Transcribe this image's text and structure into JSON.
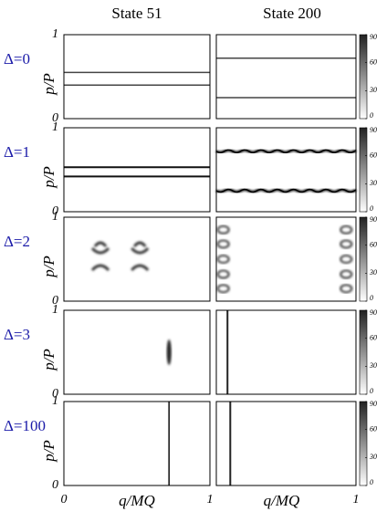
{
  "chart_data": {
    "type": "heatmap-grid",
    "columns": [
      "State 51",
      "State 200"
    ],
    "rows": [
      "Δ=0",
      "Δ=1",
      "Δ=2",
      "Δ=3",
      "Δ=100"
    ],
    "xlabel": "q/MQ",
    "ylabel": "p/P",
    "xlim": [
      0,
      1
    ],
    "ylim": [
      0,
      1
    ],
    "xticks": [
      0,
      1
    ],
    "yticks": [
      0,
      1
    ],
    "colorbar_lim": [
      0,
      90
    ],
    "colorbar_ticks": [
      0,
      30,
      60,
      90
    ],
    "row_label_color": "#1a1aa8"
  }
}
